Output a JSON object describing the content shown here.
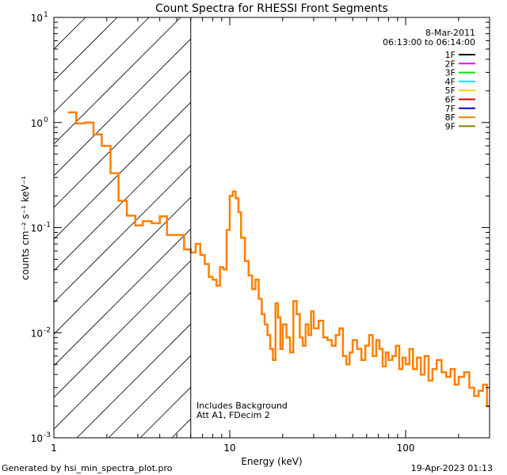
{
  "chart_data": {
    "type": "line",
    "title": "Count Spectra for RHESSI Front Segments",
    "xlabel": "Energy (keV)",
    "ylabel": "counts cm⁻² s⁻¹ keV⁻¹",
    "xscale": "log",
    "yscale": "log",
    "xlim": [
      1,
      300
    ],
    "ylim": [
      0.001,
      10
    ],
    "x_ticks": [
      {
        "value": 1,
        "label": "1"
      },
      {
        "value": 10,
        "label": "10"
      },
      {
        "value": 100,
        "label": "100"
      }
    ],
    "y_ticks": [
      {
        "value": 10,
        "base": "10",
        "exp": "1"
      },
      {
        "value": 1,
        "base": "10",
        "exp": "0"
      },
      {
        "value": 0.1,
        "base": "10",
        "exp": "-1"
      },
      {
        "value": 0.01,
        "base": "10",
        "exp": "-2"
      },
      {
        "value": 0.001,
        "base": "10",
        "exp": "-3"
      }
    ],
    "hatched_region": {
      "from": 1,
      "to": 6
    },
    "vertical_line": 6,
    "annotations": [
      "Includes Background",
      "Att A1, FDecim  2"
    ],
    "date_label": "8-Mar-2011",
    "time_range": "06:13:00 to 06:14:00",
    "legend": [
      {
        "name": "1F",
        "color": "#000000"
      },
      {
        "name": "2F",
        "color": "#ff00ff"
      },
      {
        "name": "3F",
        "color": "#00e000"
      },
      {
        "name": "4F",
        "color": "#00e5ee"
      },
      {
        "name": "5F",
        "color": "#ffd000"
      },
      {
        "name": "6F",
        "color": "#e00000"
      },
      {
        "name": "7F",
        "color": "#0000d0"
      },
      {
        "name": "8F",
        "color": "#ff8000"
      },
      {
        "name": "9F",
        "color": "#808000"
      }
    ],
    "series": [
      {
        "name": "8F",
        "color": "#ff8000",
        "style": "step",
        "edges": [
          1.2,
          1.34,
          1.5,
          1.68,
          1.87,
          2.1,
          2.33,
          2.6,
          2.9,
          3.2,
          3.6,
          4.0,
          4.4,
          4.9,
          5.5,
          6.0,
          6.4,
          6.8,
          7.2,
          7.6,
          8.0,
          8.4,
          8.8,
          9.2,
          9.6,
          10.0,
          10.4,
          10.8,
          11.2,
          11.6,
          12.2,
          12.8,
          13.4,
          14.0,
          14.6,
          15.2,
          15.8,
          16.4,
          17.0,
          17.6,
          18.2,
          18.8,
          19.4,
          20.0,
          21.0,
          22.0,
          23.0,
          24.0,
          25.0,
          26.0,
          27.0,
          28.0,
          29.0,
          30.0,
          32.0,
          34.0,
          36.0,
          38.0,
          40.0,
          42.0,
          44.0,
          46.0,
          48.0,
          50.0,
          53.0,
          56.0,
          59.0,
          62.0,
          65.0,
          68.0,
          71.0,
          74.0,
          77.0,
          80.0,
          84.0,
          88.0,
          92.0,
          96.0,
          100.0,
          105.0,
          110.0,
          116.0,
          122.0,
          128.0,
          135.0,
          142.0,
          150.0,
          160.0,
          170.0,
          180.0,
          190.0,
          200.0,
          215.0,
          230.0,
          245.0,
          260.0,
          275.0,
          290.0,
          300.0
        ],
        "values": [
          1.25,
          0.98,
          1.0,
          0.77,
          0.6,
          0.33,
          0.18,
          0.13,
          0.105,
          0.115,
          0.11,
          0.128,
          0.085,
          0.085,
          0.062,
          0.058,
          0.07,
          0.055,
          0.045,
          0.034,
          0.032,
          0.028,
          0.042,
          0.04,
          0.095,
          0.2,
          0.22,
          0.19,
          0.14,
          0.08,
          0.048,
          0.035,
          0.026,
          0.032,
          0.021,
          0.015,
          0.012,
          0.0095,
          0.007,
          0.0055,
          0.019,
          0.014,
          0.007,
          0.012,
          0.009,
          0.0065,
          0.02,
          0.015,
          0.009,
          0.0075,
          0.012,
          0.0095,
          0.016,
          0.011,
          0.013,
          0.009,
          0.0085,
          0.0075,
          0.0095,
          0.011,
          0.006,
          0.005,
          0.0065,
          0.0085,
          0.007,
          0.0055,
          0.0075,
          0.0095,
          0.006,
          0.0085,
          0.007,
          0.0048,
          0.0065,
          0.0055,
          0.006,
          0.0075,
          0.0045,
          0.0058,
          0.005,
          0.007,
          0.0045,
          0.0058,
          0.004,
          0.006,
          0.0035,
          0.0045,
          0.0055,
          0.0042,
          0.0038,
          0.0045,
          0.0032,
          0.0038,
          0.0042,
          0.003,
          0.0025,
          0.0028,
          0.0032,
          0.002
        ]
      }
    ]
  },
  "footer": {
    "generated_by": "Generated by  hsi_min_spectra_plot.pro",
    "timestamp": "19-Apr-2023 01:13"
  }
}
